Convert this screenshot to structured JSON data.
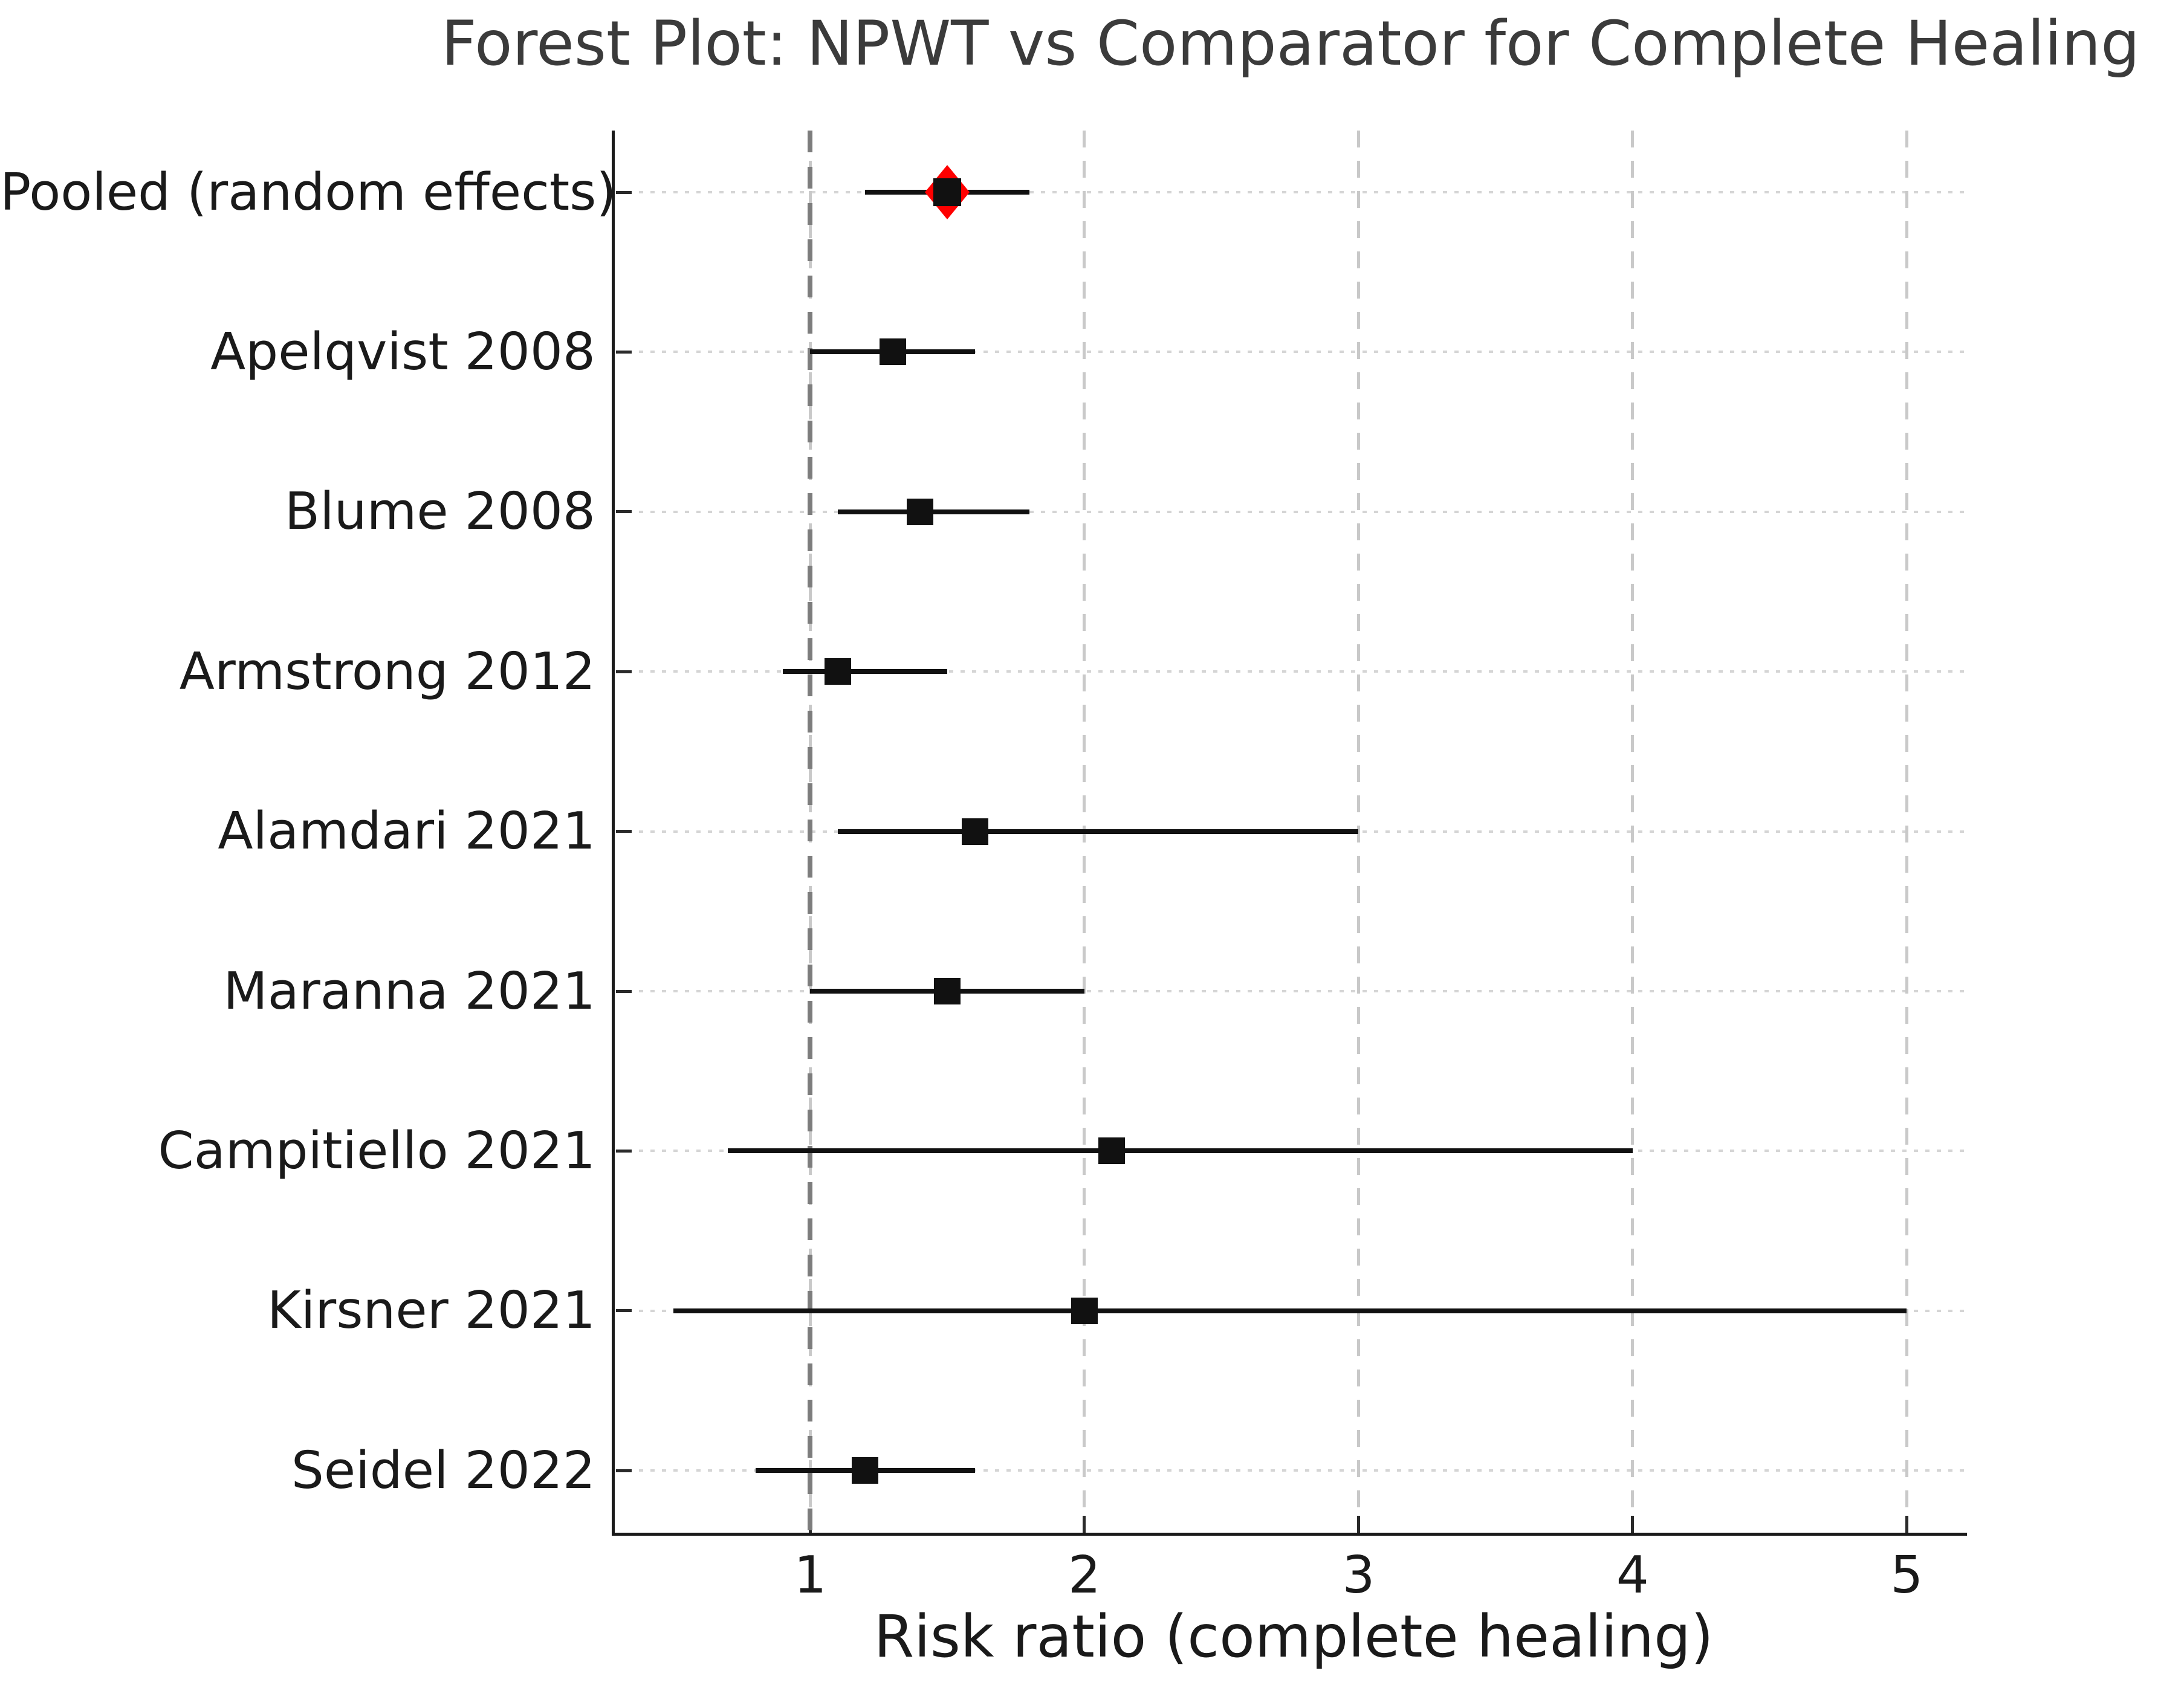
{
  "title": "Forest Plot: NPWT vs Comparator for Complete Healing",
  "chart_data": {
    "type": "scatter",
    "subtype": "forest-plot",
    "title": "Forest Plot: NPWT vs Comparator for Complete Healing",
    "xlabel": "Risk ratio (complete healing)",
    "ylabel": "",
    "x_ticks": [
      1,
      2,
      3,
      4,
      5
    ],
    "xlim": [
      0.28,
      5.22
    ],
    "reference_line_x": 1,
    "grid": true,
    "legend": "none",
    "studies": [
      {
        "label": "Pooled (random effects)",
        "rr": 1.5,
        "ci_low": 1.2,
        "ci_high": 1.8,
        "pooled": true
      },
      {
        "label": "Apelqvist 2008",
        "rr": 1.3,
        "ci_low": 1.0,
        "ci_high": 1.6,
        "pooled": false
      },
      {
        "label": "Blume 2008",
        "rr": 1.4,
        "ci_low": 1.1,
        "ci_high": 1.8,
        "pooled": false
      },
      {
        "label": "Armstrong 2012",
        "rr": 1.1,
        "ci_low": 0.9,
        "ci_high": 1.5,
        "pooled": false
      },
      {
        "label": "Alamdari 2021",
        "rr": 1.6,
        "ci_low": 1.1,
        "ci_high": 3.0,
        "pooled": false
      },
      {
        "label": "Maranna 2021",
        "rr": 1.5,
        "ci_low": 1.0,
        "ci_high": 2.0,
        "pooled": false
      },
      {
        "label": "Campitiello 2021",
        "rr": 2.1,
        "ci_low": 0.7,
        "ci_high": 4.0,
        "pooled": false
      },
      {
        "label": "Kirsner 2021",
        "rr": 2.0,
        "ci_low": 0.5,
        "ci_high": 5.0,
        "pooled": false
      },
      {
        "label": "Seidel 2022",
        "rr": 1.2,
        "ci_low": 0.8,
        "ci_high": 1.6,
        "pooled": false
      }
    ],
    "colors": {
      "marker": "#111111",
      "ci_line": "#111111",
      "pooled_diamond": "#ff0000",
      "reference_line": "#7d7d7d",
      "gridline": "#c9c9c9",
      "row_gridline": "#d5d5d5",
      "title": "#3b3b3b",
      "axis": "#1a1a1a"
    }
  }
}
